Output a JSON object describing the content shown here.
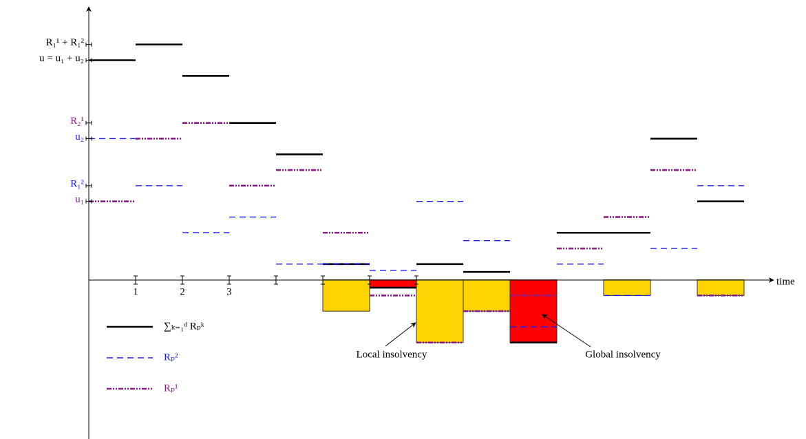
{
  "chart_data": {
    "type": "step",
    "x_label": "time",
    "xlim": [
      0,
      14.5
    ],
    "xticks": [
      1,
      2,
      3
    ],
    "xtick_marks": [
      4,
      5,
      6,
      7
    ],
    "ylim": [
      -20.3,
      34.8
    ],
    "yticks": [
      {
        "value": 10,
        "label": "u₁",
        "color": "#8b1a8b"
      },
      {
        "value": 12,
        "label": "R₁²",
        "color": "#1a1aff"
      },
      {
        "value": 18,
        "label": "u₂",
        "color": "#1a1aff"
      },
      {
        "value": 20,
        "label": "R₂¹",
        "color": "#8b1a8b"
      },
      {
        "value": 28,
        "label": "u = u₁ + u₂",
        "color": "#000000"
      },
      {
        "value": 30,
        "label": "R₁¹ + R₁²",
        "color": "#000000"
      }
    ],
    "bars": [
      {
        "color": "#ffd400",
        "values": [
          null,
          null,
          null,
          null,
          null,
          -4,
          null,
          -8,
          -4,
          null,
          null,
          -2,
          null,
          -2
        ]
      },
      {
        "color": "#ff0000",
        "values": [
          null,
          null,
          null,
          null,
          null,
          null,
          -1,
          null,
          null,
          -8,
          null,
          null,
          null,
          null
        ]
      }
    ],
    "series": [
      {
        "name": "∑ₖ₌₁ᵈ Rₚᵏ",
        "color": "#000000",
        "dash": "solid",
        "values": [
          28,
          30,
          26,
          20,
          16,
          2,
          -1,
          2,
          1,
          -8,
          6,
          6,
          18,
          10
        ]
      },
      {
        "name": "Rₚ²",
        "color": "#1a1aff",
        "dash": "dashed",
        "values": [
          18,
          12,
          6,
          8,
          2,
          2,
          1.2,
          10,
          5,
          -6,
          2,
          -2,
          4,
          12
        ]
      },
      {
        "name": "Rₚ¹",
        "color": "#8b1a8b",
        "dash": "dashdot",
        "values": [
          10,
          18,
          20,
          12,
          14,
          6,
          -2,
          -8,
          -4,
          -2,
          4,
          8,
          14,
          -2
        ]
      }
    ],
    "annotations": [
      "Local insolvency",
      "Global insolvency"
    ]
  }
}
